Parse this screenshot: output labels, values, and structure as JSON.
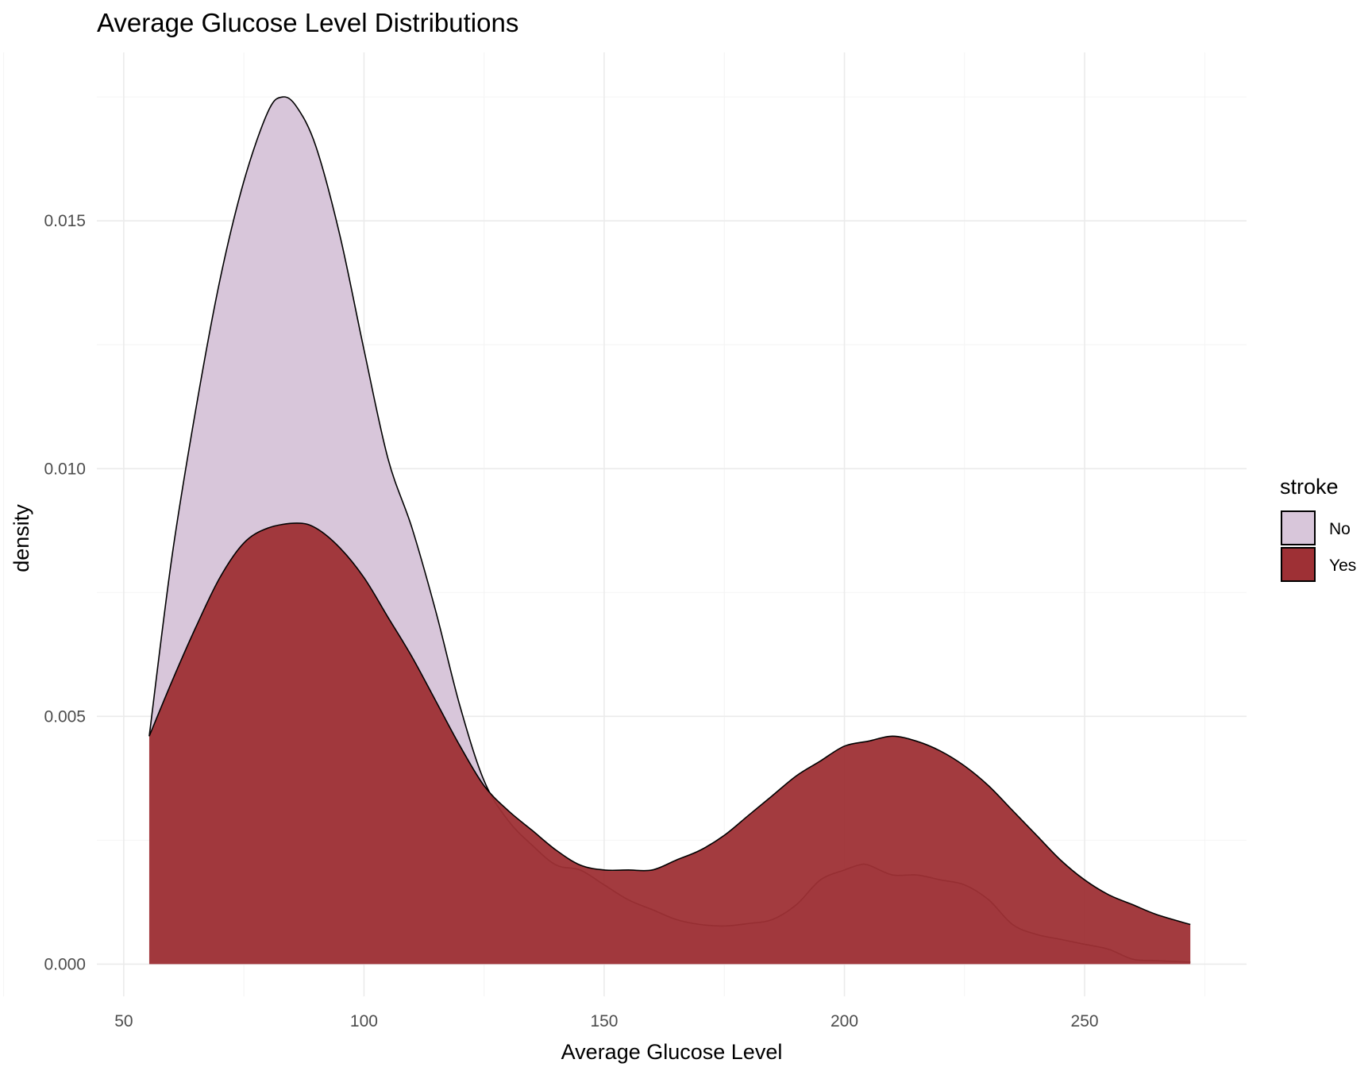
{
  "chart_data": {
    "type": "area",
    "title": "Average Glucose Level Distributions",
    "xlabel": "Average Glucose Level",
    "ylabel": "density",
    "xlim": [
      44.4,
      283.7
    ],
    "ylim": [
      -0.00065,
      0.0184
    ],
    "x_ticks": [
      50,
      100,
      150,
      200,
      250
    ],
    "x_tick_labels": [
      "50",
      "100",
      "150",
      "200",
      "250"
    ],
    "y_ticks": [
      0.0,
      0.005,
      0.01,
      0.015
    ],
    "y_tick_labels": [
      "0.000",
      "0.005",
      "0.010",
      "0.015"
    ],
    "grid": true,
    "legend": {
      "title": "stroke",
      "position": "right",
      "entries": [
        {
          "label": "No",
          "color": "#d8c6da"
        },
        {
          "label": "Yes",
          "color": "#9e3035"
        }
      ]
    },
    "series": [
      {
        "name": "No",
        "color": "#d8c6da",
        "points": [
          [
            55.3,
            0.0046
          ],
          [
            60,
            0.0082
          ],
          [
            65,
            0.0112
          ],
          [
            70,
            0.0138
          ],
          [
            75,
            0.0158
          ],
          [
            80,
            0.0172
          ],
          [
            83,
            0.0175
          ],
          [
            86,
            0.0173
          ],
          [
            90,
            0.0165
          ],
          [
            95,
            0.0147
          ],
          [
            100,
            0.0124
          ],
          [
            105,
            0.0102
          ],
          [
            110,
            0.0088
          ],
          [
            115,
            0.0071
          ],
          [
            120,
            0.0052
          ],
          [
            125,
            0.0037
          ],
          [
            130,
            0.0029
          ],
          [
            135,
            0.0024
          ],
          [
            140,
            0.002
          ],
          [
            145,
            0.0019
          ],
          [
            150,
            0.0016
          ],
          [
            155,
            0.0013
          ],
          [
            160,
            0.0011
          ],
          [
            165,
            0.0009
          ],
          [
            170,
            0.0008
          ],
          [
            175,
            0.00077
          ],
          [
            180,
            0.00082
          ],
          [
            185,
            0.0009
          ],
          [
            190,
            0.0012
          ],
          [
            195,
            0.0017
          ],
          [
            200,
            0.0019
          ],
          [
            203,
            0.002
          ],
          [
            205,
            0.002
          ],
          [
            210,
            0.0018
          ],
          [
            215,
            0.0018
          ],
          [
            220,
            0.0017
          ],
          [
            225,
            0.0016
          ],
          [
            230,
            0.0013
          ],
          [
            235,
            0.0008
          ],
          [
            240,
            0.0006
          ],
          [
            245,
            0.0005
          ],
          [
            250,
            0.0004
          ],
          [
            255,
            0.0003
          ],
          [
            260,
            0.0001
          ],
          [
            265,
            7e-05
          ],
          [
            272,
            4e-05
          ]
        ]
      },
      {
        "name": "Yes",
        "color": "#9e3035",
        "points": [
          [
            55.3,
            0.0046
          ],
          [
            60,
            0.0057
          ],
          [
            65,
            0.0068
          ],
          [
            70,
            0.0078
          ],
          [
            75,
            0.0085
          ],
          [
            80,
            0.0088
          ],
          [
            86,
            0.0089
          ],
          [
            90,
            0.0088
          ],
          [
            95,
            0.0084
          ],
          [
            100,
            0.0078
          ],
          [
            105,
            0.007
          ],
          [
            110,
            0.0062
          ],
          [
            115,
            0.0053
          ],
          [
            120,
            0.0044
          ],
          [
            125,
            0.0036
          ],
          [
            130,
            0.0031
          ],
          [
            135,
            0.0027
          ],
          [
            140,
            0.0023
          ],
          [
            145,
            0.002
          ],
          [
            150,
            0.0019
          ],
          [
            155,
            0.0019
          ],
          [
            160,
            0.0019
          ],
          [
            165,
            0.0021
          ],
          [
            170,
            0.0023
          ],
          [
            175,
            0.0026
          ],
          [
            180,
            0.003
          ],
          [
            185,
            0.0034
          ],
          [
            190,
            0.0038
          ],
          [
            195,
            0.0041
          ],
          [
            200,
            0.0044
          ],
          [
            205,
            0.0045
          ],
          [
            210,
            0.0046
          ],
          [
            215,
            0.0045
          ],
          [
            220,
            0.0043
          ],
          [
            225,
            0.004
          ],
          [
            230,
            0.0036
          ],
          [
            235,
            0.0031
          ],
          [
            240,
            0.0026
          ],
          [
            245,
            0.0021
          ],
          [
            250,
            0.0017
          ],
          [
            255,
            0.0014
          ],
          [
            260,
            0.0012
          ],
          [
            265,
            0.001
          ],
          [
            272,
            0.0008
          ]
        ]
      }
    ]
  }
}
